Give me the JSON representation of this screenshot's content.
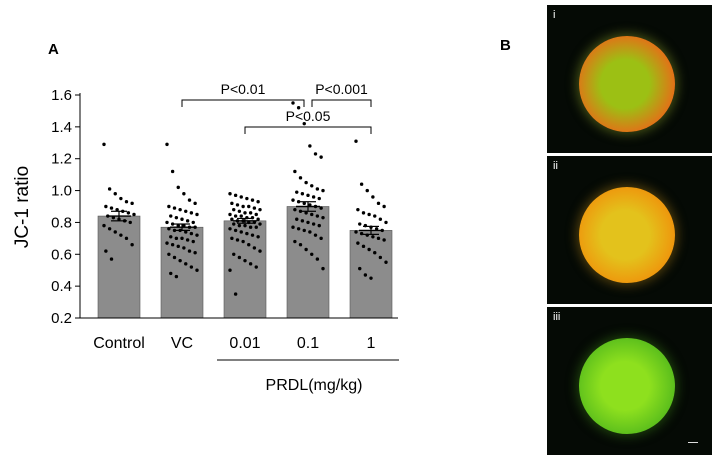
{
  "panels": {
    "a": "A",
    "b": "B"
  },
  "chart_data": {
    "type": "bar",
    "title": "",
    "xlabel": "",
    "ylabel": "JC-1 ratio",
    "ylim": [
      0.2,
      1.6
    ],
    "yticks": [
      "0.2",
      "0.4",
      "0.6",
      "0.8",
      "1.0",
      "1.2",
      "1.4",
      "1.6"
    ],
    "categories": [
      "Control",
      "VC",
      "0.01",
      "0.1",
      "1"
    ],
    "values": [
      0.84,
      0.77,
      0.81,
      0.9,
      0.75
    ],
    "sem": [
      0.03,
      0.02,
      0.015,
      0.03,
      0.025
    ],
    "bar_color": "#8c8c8c",
    "group_label": "PRDL(mg/kg)",
    "significance": [
      {
        "from": 1,
        "to": 3,
        "label": "P<0.01"
      },
      {
        "from": 3,
        "to": 4,
        "label": "P<0.001"
      },
      {
        "from": 2,
        "to": 4,
        "label": "P<0.05"
      }
    ],
    "points": [
      [
        1.29,
        1.01,
        0.98,
        0.95,
        0.93,
        0.92,
        0.9,
        0.89,
        0.88,
        0.87,
        0.86,
        0.85,
        0.84,
        0.83,
        0.82,
        0.81,
        0.8,
        0.78,
        0.76,
        0.74,
        0.72,
        0.7,
        0.66,
        0.62,
        0.57
      ],
      [
        1.29,
        1.12,
        1.02,
        0.98,
        0.94,
        0.92,
        0.9,
        0.89,
        0.88,
        0.87,
        0.86,
        0.85,
        0.84,
        0.83,
        0.82,
        0.81,
        0.8,
        0.8,
        0.79,
        0.78,
        0.78,
        0.77,
        0.77,
        0.76,
        0.75,
        0.75,
        0.74,
        0.73,
        0.72,
        0.71,
        0.7,
        0.7,
        0.69,
        0.68,
        0.67,
        0.66,
        0.65,
        0.64,
        0.62,
        0.61,
        0.6,
        0.58,
        0.56,
        0.54,
        0.52,
        0.5,
        0.48,
        0.46
      ],
      [
        0.98,
        0.97,
        0.96,
        0.95,
        0.94,
        0.93,
        0.92,
        0.91,
        0.9,
        0.9,
        0.89,
        0.88,
        0.88,
        0.87,
        0.86,
        0.86,
        0.85,
        0.85,
        0.84,
        0.84,
        0.83,
        0.83,
        0.82,
        0.82,
        0.81,
        0.81,
        0.8,
        0.8,
        0.79,
        0.79,
        0.78,
        0.78,
        0.77,
        0.77,
        0.76,
        0.75,
        0.74,
        0.73,
        0.72,
        0.71,
        0.7,
        0.69,
        0.68,
        0.66,
        0.64,
        0.62,
        0.6,
        0.58,
        0.56,
        0.54,
        0.52,
        0.5,
        0.35
      ],
      [
        1.55,
        1.52,
        1.42,
        1.28,
        1.23,
        1.21,
        1.12,
        1.08,
        1.05,
        1.03,
        1.01,
        1.0,
        0.99,
        0.98,
        0.97,
        0.96,
        0.95,
        0.94,
        0.93,
        0.92,
        0.91,
        0.9,
        0.89,
        0.88,
        0.87,
        0.86,
        0.85,
        0.84,
        0.83,
        0.82,
        0.81,
        0.8,
        0.79,
        0.78,
        0.77,
        0.76,
        0.75,
        0.74,
        0.72,
        0.7,
        0.68,
        0.66,
        0.63,
        0.6,
        0.57,
        0.51
      ],
      [
        1.31,
        1.04,
        1.0,
        0.96,
        0.92,
        0.9,
        0.88,
        0.86,
        0.85,
        0.84,
        0.82,
        0.8,
        0.79,
        0.78,
        0.77,
        0.76,
        0.75,
        0.74,
        0.73,
        0.72,
        0.71,
        0.7,
        0.69,
        0.67,
        0.65,
        0.63,
        0.61,
        0.58,
        0.55,
        0.51,
        0.47,
        0.45
      ]
    ]
  },
  "micrographs": [
    {
      "label": "i",
      "inner": "#9cc014",
      "outer": "#ee6418",
      "glow": "#3e4a14"
    },
    {
      "label": "ii",
      "inner": "#e3c21c",
      "outer": "#f08f0a",
      "glow": "#4a3a0c"
    },
    {
      "label": "iii",
      "inner": "#8ee01e",
      "outer": "#52b81c",
      "glow": "#1c3c0c"
    }
  ]
}
